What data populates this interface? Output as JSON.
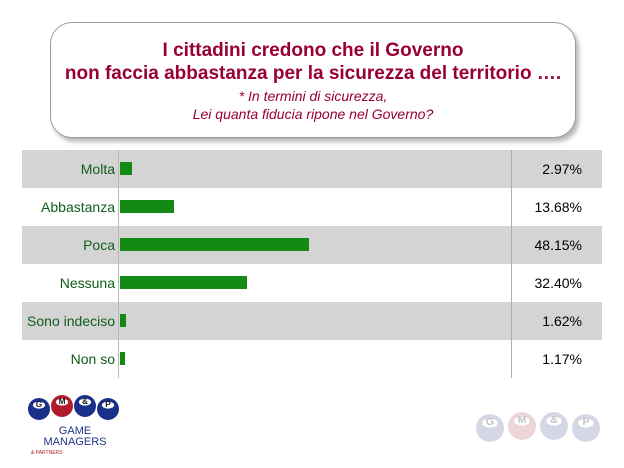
{
  "header": {
    "title_line1": "I cittadini credono che il Governo",
    "title_line2": "non faccia abbastanza per la sicurezza  del territorio ….",
    "subtitle_line1": "* In termini di sicurezza,",
    "subtitle_line2": "Lei quanta fiducia ripone nel Governo?"
  },
  "chart_data": {
    "type": "bar",
    "orientation": "horizontal",
    "categories": [
      "Molta",
      "Abbastanza",
      "Poca",
      "Nessuna",
      "Sono indeciso",
      "Non so"
    ],
    "values": [
      2.97,
      13.68,
      48.15,
      32.4,
      1.62,
      1.17
    ],
    "value_labels": [
      "2.97%",
      "13.68%",
      "48.15%",
      "32.40%",
      "1.62%",
      "1.17%"
    ],
    "xlim": [
      0,
      100
    ],
    "bar_color": "#138a13",
    "label_color": "#0f5d1c",
    "row_shade_color": "#d4d4d4",
    "grid": false
  },
  "logos": {
    "left_letters": [
      "G",
      "M",
      "&",
      "P"
    ],
    "left_line1": "GAME",
    "left_line2": "MANAGERS",
    "left_line3": "& PARTNERS",
    "right_letters": [
      "G",
      "M",
      "&",
      "P"
    ]
  },
  "colors": {
    "title": "#990033",
    "ball_blue": "#1a2f8a",
    "ball_red": "#b01c2e",
    "brand_text": "#1e3488"
  }
}
